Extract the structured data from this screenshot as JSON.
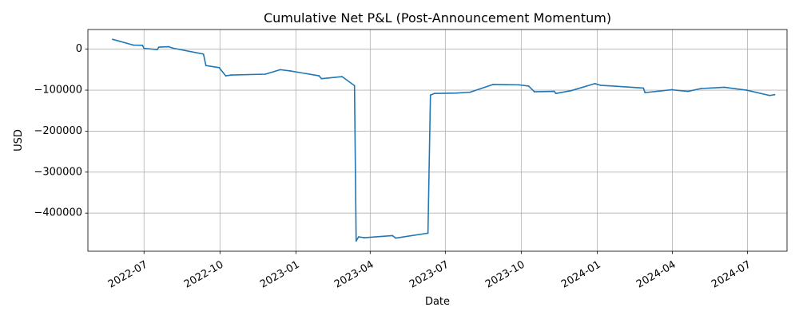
{
  "chart_data": {
    "type": "line",
    "title": "Cumulative Net P&L (Post-Announcement Momentum)",
    "xlabel": "Date",
    "ylabel": "USD",
    "grid": true,
    "series_color": "#1f77b4",
    "xlim": [
      "2022-04-24",
      "2024-08-18"
    ],
    "ylim": [
      -493000,
      48000
    ],
    "x_ticks": [
      {
        "date": "2022-07-01",
        "label": "2022-07"
      },
      {
        "date": "2022-10-01",
        "label": "2022-10"
      },
      {
        "date": "2023-01-01",
        "label": "2023-01"
      },
      {
        "date": "2023-04-01",
        "label": "2023-04"
      },
      {
        "date": "2023-07-01",
        "label": "2023-07"
      },
      {
        "date": "2023-10-01",
        "label": "2023-10"
      },
      {
        "date": "2024-01-01",
        "label": "2024-01"
      },
      {
        "date": "2024-04-01",
        "label": "2024-04"
      },
      {
        "date": "2024-07-01",
        "label": "2024-07"
      }
    ],
    "y_ticks": [
      {
        "value": 0,
        "label": "0"
      },
      {
        "value": -100000,
        "label": "−100000"
      },
      {
        "value": -200000,
        "label": "−200000"
      },
      {
        "value": -300000,
        "label": "−300000"
      },
      {
        "value": -400000,
        "label": "−400000"
      }
    ],
    "series": [
      {
        "points": [
          {
            "x": "2022-05-24",
            "y": 24000
          },
          {
            "x": "2022-06-18",
            "y": 10000
          },
          {
            "x": "2022-06-29",
            "y": 9500
          },
          {
            "x": "2022-07-01",
            "y": 2000
          },
          {
            "x": "2022-07-17",
            "y": -1000
          },
          {
            "x": "2022-07-19",
            "y": 5000
          },
          {
            "x": "2022-07-31",
            "y": 6000
          },
          {
            "x": "2022-08-05",
            "y": 2500
          },
          {
            "x": "2022-09-11",
            "y": -12000
          },
          {
            "x": "2022-09-14",
            "y": -40000
          },
          {
            "x": "2022-09-30",
            "y": -45000
          },
          {
            "x": "2022-10-08",
            "y": -65000
          },
          {
            "x": "2022-10-15",
            "y": -63000
          },
          {
            "x": "2022-11-25",
            "y": -61000
          },
          {
            "x": "2022-12-13",
            "y": -50000
          },
          {
            "x": "2022-12-25",
            "y": -53000
          },
          {
            "x": "2023-01-29",
            "y": -65000
          },
          {
            "x": "2023-02-01",
            "y": -72000
          },
          {
            "x": "2023-02-26",
            "y": -67000
          },
          {
            "x": "2023-03-13",
            "y": -89000
          },
          {
            "x": "2023-03-15",
            "y": -468000
          },
          {
            "x": "2023-03-18",
            "y": -458000
          },
          {
            "x": "2023-03-25",
            "y": -460000
          },
          {
            "x": "2023-04-28",
            "y": -455000
          },
          {
            "x": "2023-05-02",
            "y": -461000
          },
          {
            "x": "2023-06-10",
            "y": -449000
          },
          {
            "x": "2023-06-13",
            "y": -112000
          },
          {
            "x": "2023-06-18",
            "y": -108000
          },
          {
            "x": "2023-07-15",
            "y": -107000
          },
          {
            "x": "2023-07-31",
            "y": -105000
          },
          {
            "x": "2023-08-28",
            "y": -86000
          },
          {
            "x": "2023-09-28",
            "y": -87000
          },
          {
            "x": "2023-10-10",
            "y": -90000
          },
          {
            "x": "2023-10-17",
            "y": -104000
          },
          {
            "x": "2023-11-10",
            "y": -103000
          },
          {
            "x": "2023-11-12",
            "y": -108000
          },
          {
            "x": "2023-12-01",
            "y": -101000
          },
          {
            "x": "2023-12-29",
            "y": -84000
          },
          {
            "x": "2024-01-05",
            "y": -88000
          },
          {
            "x": "2024-02-26",
            "y": -95000
          },
          {
            "x": "2024-02-28",
            "y": -106000
          },
          {
            "x": "2024-03-31",
            "y": -99000
          },
          {
            "x": "2024-04-20",
            "y": -103000
          },
          {
            "x": "2024-05-06",
            "y": -96000
          },
          {
            "x": "2024-06-03",
            "y": -93000
          },
          {
            "x": "2024-06-30",
            "y": -100000
          },
          {
            "x": "2024-07-28",
            "y": -113000
          },
          {
            "x": "2024-08-03",
            "y": -111000
          }
        ]
      }
    ]
  }
}
